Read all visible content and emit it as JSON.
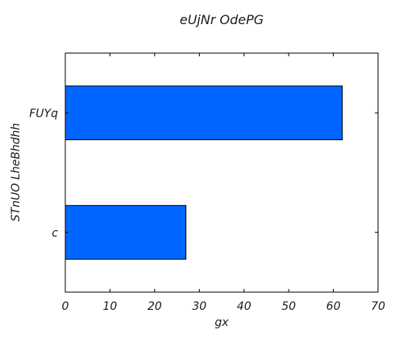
{
  "chart_data": {
    "type": "bar",
    "orientation": "horizontal",
    "title": "eUjNr OdePG",
    "xlabel": "gx",
    "ylabel": "STnUO LheBhdhh",
    "categories": [
      "c",
      "FUYq"
    ],
    "values": [
      27,
      62
    ],
    "xlim": [
      0,
      70
    ],
    "xticks": [
      0,
      10,
      20,
      30,
      40,
      50,
      60,
      70
    ],
    "grid": false,
    "bar_color": "#0066ff"
  }
}
